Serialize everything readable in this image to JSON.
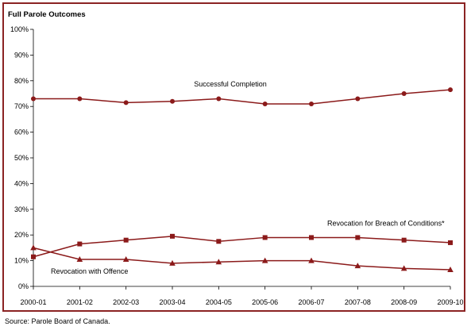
{
  "chart_data": {
    "type": "line",
    "title": "Full Parole Outcomes",
    "xlabel": "",
    "ylabel": "",
    "ylim": [
      0,
      100
    ],
    "y_ticks": [
      "0%",
      "10%",
      "20%",
      "30%",
      "40%",
      "50%",
      "60%",
      "70%",
      "80%",
      "90%",
      "100%"
    ],
    "categories": [
      "2000-01",
      "2001-02",
      "2002-03",
      "2003-04",
      "2004-05",
      "2005-06",
      "2006-07",
      "2007-08",
      "2008-09",
      "2009-10"
    ],
    "grid": false,
    "series": [
      {
        "name": "Successful Completion",
        "marker": "circle",
        "color": "#8b1a1a",
        "values": [
          73,
          73,
          71.5,
          72,
          73,
          71,
          71,
          73,
          75,
          76.5
        ]
      },
      {
        "name": "Revocation for Breach of Conditions*",
        "marker": "square",
        "color": "#8b1a1a",
        "values": [
          11.5,
          16.5,
          18,
          19.5,
          17.5,
          19,
          19,
          19,
          18,
          17
        ]
      },
      {
        "name": "Revocation with Offence",
        "marker": "triangle",
        "color": "#8b1a1a",
        "values": [
          15,
          10.5,
          10.5,
          9,
          9.5,
          10,
          10,
          8,
          7,
          6.5
        ]
      }
    ]
  },
  "source": "Source:  Parole Board of Canada."
}
